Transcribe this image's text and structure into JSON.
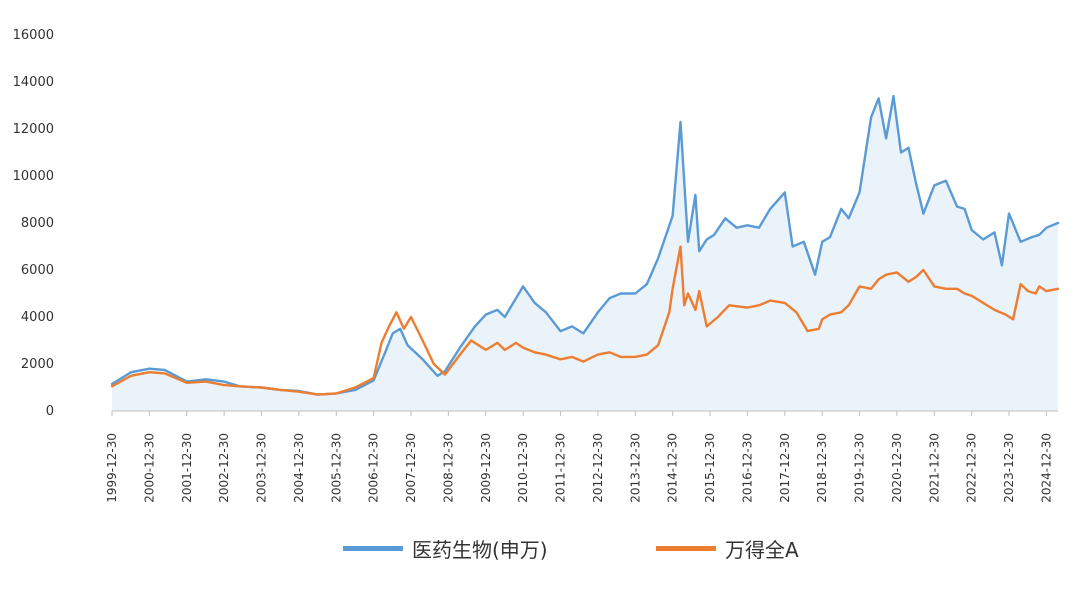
{
  "chart_data": {
    "type": "line",
    "title": "",
    "xlabel": "",
    "ylabel": "",
    "ylim": [
      0,
      16000
    ],
    "yticks": [
      "0",
      "2000",
      "4000",
      "6000",
      "8000",
      "10000",
      "12000",
      "14000",
      "16000"
    ],
    "xtick_labels": [
      "1999-12-30",
      "2000-12-30",
      "2001-12-30",
      "2002-12-30",
      "2003-12-30",
      "2004-12-30",
      "2005-12-30",
      "2006-12-30",
      "2007-12-30",
      "2008-12-30",
      "2009-12-30",
      "2010-12-30",
      "2011-12-30",
      "2012-12-30",
      "2013-12-30",
      "2014-12-30",
      "2015-12-30",
      "2016-12-30",
      "2017-12-30",
      "2018-12-30",
      "2019-12-30",
      "2020-12-30",
      "2021-12-30",
      "2022-12-30",
      "2023-12-30",
      "2024-12-30"
    ],
    "legend_position": "bottom",
    "grid": false,
    "series": [
      {
        "name": "医药生物(申万)",
        "color": "#5b9bd5",
        "fill": "#eaf2fa",
        "x": [
          1999.99,
          2000.5,
          2000.99,
          2001.4,
          2001.99,
          2002.5,
          2002.99,
          2003.4,
          2003.99,
          2004.5,
          2004.99,
          2005.5,
          2005.99,
          2006.5,
          2006.99,
          2007.3,
          2007.5,
          2007.7,
          2007.9,
          2008.3,
          2008.7,
          2008.9,
          2009.3,
          2009.7,
          2009.99,
          2010.3,
          2010.5,
          2010.8,
          2010.99,
          2011.3,
          2011.6,
          2011.99,
          2012.3,
          2012.6,
          2012.99,
          2013.3,
          2013.6,
          2013.99,
          2014.3,
          2014.6,
          2014.99,
          2015.2,
          2015.4,
          2015.6,
          2015.7,
          2015.9,
          2016.1,
          2016.4,
          2016.7,
          2016.99,
          2017.3,
          2017.6,
          2017.99,
          2018.2,
          2018.5,
          2018.8,
          2018.99,
          2019.2,
          2019.5,
          2019.7,
          2019.99,
          2020.3,
          2020.5,
          2020.7,
          2020.9,
          2021.1,
          2021.3,
          2021.5,
          2021.7,
          2021.99,
          2022.3,
          2022.6,
          2022.8,
          2022.99,
          2023.3,
          2023.6,
          2023.8,
          2023.99,
          2024.3,
          2024.6,
          2024.8,
          2024.99,
          2025.3
        ],
        "values": [
          1150,
          1650,
          1800,
          1750,
          1250,
          1350,
          1250,
          1050,
          1000,
          900,
          850,
          700,
          750,
          900,
          1300,
          2500,
          3300,
          3500,
          2800,
          2200,
          1500,
          1700,
          2700,
          3600,
          4100,
          4300,
          4000,
          4800,
          5300,
          4600,
          4200,
          3400,
          3600,
          3300,
          4200,
          4800,
          5000,
          5000,
          5400,
          6500,
          8300,
          12300,
          7200,
          9200,
          6800,
          7300,
          7500,
          8200,
          7800,
          7900,
          7800,
          8600,
          9300,
          7000,
          7200,
          5800,
          7200,
          7400,
          8600,
          8200,
          9300,
          12500,
          13300,
          11600,
          13400,
          11000,
          11200,
          9700,
          8400,
          9600,
          9800,
          8700,
          8600,
          7700,
          7300,
          7600,
          6200,
          8400,
          7200,
          7400,
          7500,
          7800,
          8000
        ]
      },
      {
        "name": "万得全A",
        "color": "#ed7d31",
        "x": [
          1999.99,
          2000.5,
          2000.99,
          2001.4,
          2001.99,
          2002.5,
          2002.99,
          2003.4,
          2003.99,
          2004.5,
          2004.99,
          2005.5,
          2005.99,
          2006.5,
          2006.99,
          2007.2,
          2007.4,
          2007.6,
          2007.8,
          2007.99,
          2008.3,
          2008.6,
          2008.9,
          2009.3,
          2009.6,
          2009.99,
          2010.3,
          2010.5,
          2010.8,
          2010.99,
          2011.3,
          2011.6,
          2011.99,
          2012.3,
          2012.6,
          2012.99,
          2013.3,
          2013.6,
          2013.99,
          2014.3,
          2014.6,
          2014.9,
          2014.99,
          2015.2,
          2015.3,
          2015.4,
          2015.6,
          2015.7,
          2015.9,
          2016.2,
          2016.5,
          2016.99,
          2017.3,
          2017.6,
          2017.99,
          2018.3,
          2018.6,
          2018.9,
          2018.99,
          2019.2,
          2019.5,
          2019.7,
          2019.99,
          2020.3,
          2020.5,
          2020.7,
          2020.99,
          2021.3,
          2021.5,
          2021.7,
          2021.99,
          2022.3,
          2022.6,
          2022.8,
          2022.99,
          2023.3,
          2023.6,
          2023.9,
          2024.1,
          2024.3,
          2024.5,
          2024.7,
          2024.8,
          2024.99,
          2025.3
        ],
        "values": [
          1050,
          1500,
          1650,
          1600,
          1200,
          1250,
          1100,
          1050,
          1000,
          900,
          820,
          700,
          750,
          1000,
          1400,
          2900,
          3600,
          4200,
          3500,
          4000,
          3000,
          2000,
          1550,
          2400,
          3000,
          2600,
          2900,
          2600,
          2900,
          2700,
          2500,
          2400,
          2200,
          2300,
          2100,
          2400,
          2500,
          2300,
          2300,
          2400,
          2800,
          4200,
          5200,
          7000,
          4500,
          5000,
          4300,
          5100,
          3600,
          4000,
          4500,
          4400,
          4500,
          4700,
          4600,
          4200,
          3400,
          3500,
          3900,
          4100,
          4200,
          4500,
          5300,
          5200,
          5600,
          5800,
          5900,
          5500,
          5700,
          6000,
          5300,
          5200,
          5200,
          5000,
          4900,
          4600,
          4300,
          4100,
          3900,
          5400,
          5100,
          5000,
          5300,
          5100,
          5200
        ]
      }
    ]
  },
  "legend": {
    "items": [
      {
        "label": "医药生物(申万)",
        "color": "#5b9bd5"
      },
      {
        "label": "万得全A",
        "color": "#ed7d31"
      }
    ]
  }
}
